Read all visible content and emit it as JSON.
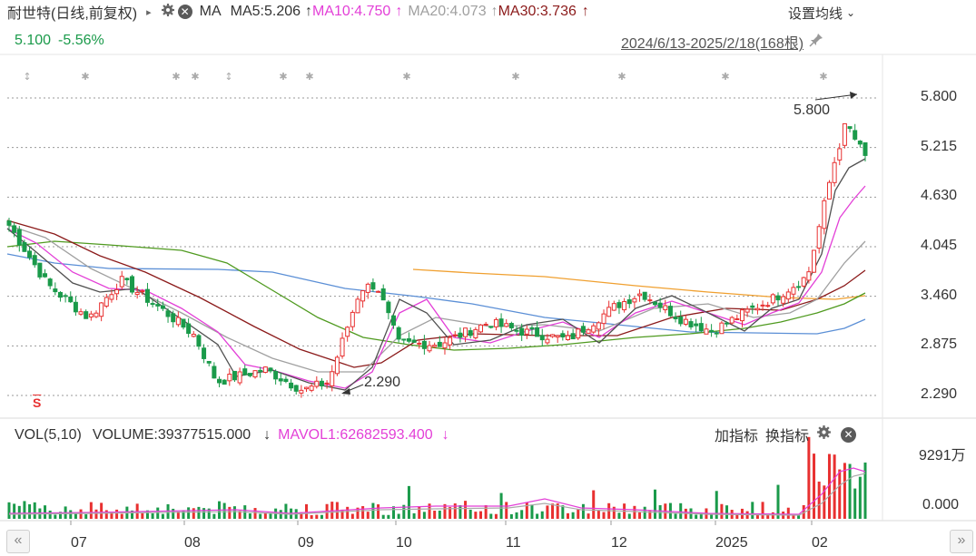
{
  "header": {
    "stock_title": "耐世特(日线,前复权)",
    "expand_arrow": "▸",
    "ma_label": "MA",
    "ma5": "MA5:5.206",
    "ma10": "MA10:4.750",
    "ma20": "MA20:4.073",
    "ma30": "MA30:3.736",
    "up_arrow": "↑",
    "settings_label": "设置均线",
    "settings_chevron": "⌄",
    "price": "5.100",
    "change": "-5.56%",
    "date_range": "2024/6/13-2025/2/18(168根)"
  },
  "colors": {
    "ma5": "#505050",
    "ma10": "#e33fd7",
    "ma20": "#a0a0a0",
    "ma30": "#8b1a1a",
    "up": "#e83030",
    "down": "#1a9a4a",
    "ma60": "#4f9a1f",
    "ma120": "#f0a030",
    "ma250": "#5b8fd6"
  },
  "price_axis": [
    "5.800",
    "5.215",
    "4.630",
    "4.045",
    "3.460",
    "2.875",
    "2.290"
  ],
  "price_range": [
    2.29,
    5.8
  ],
  "annotations": {
    "high": "5.800",
    "low": "2.290",
    "marker": "S"
  },
  "volume_panel": {
    "label": "VOL(5,10)",
    "volume": "VOLUME:39377515.000",
    "down_arrow": "↓",
    "mavol1": "MAVOL1:62682593.400",
    "add_indicator": "加指标",
    "switch_indicator": "换指标",
    "axis_top": "9291万",
    "axis_bottom": "0.000"
  },
  "time_axis": [
    "07",
    "08",
    "09",
    "10",
    "11",
    "12",
    "2025",
    "02"
  ],
  "nav": {
    "left": "«",
    "right": "»"
  }
}
